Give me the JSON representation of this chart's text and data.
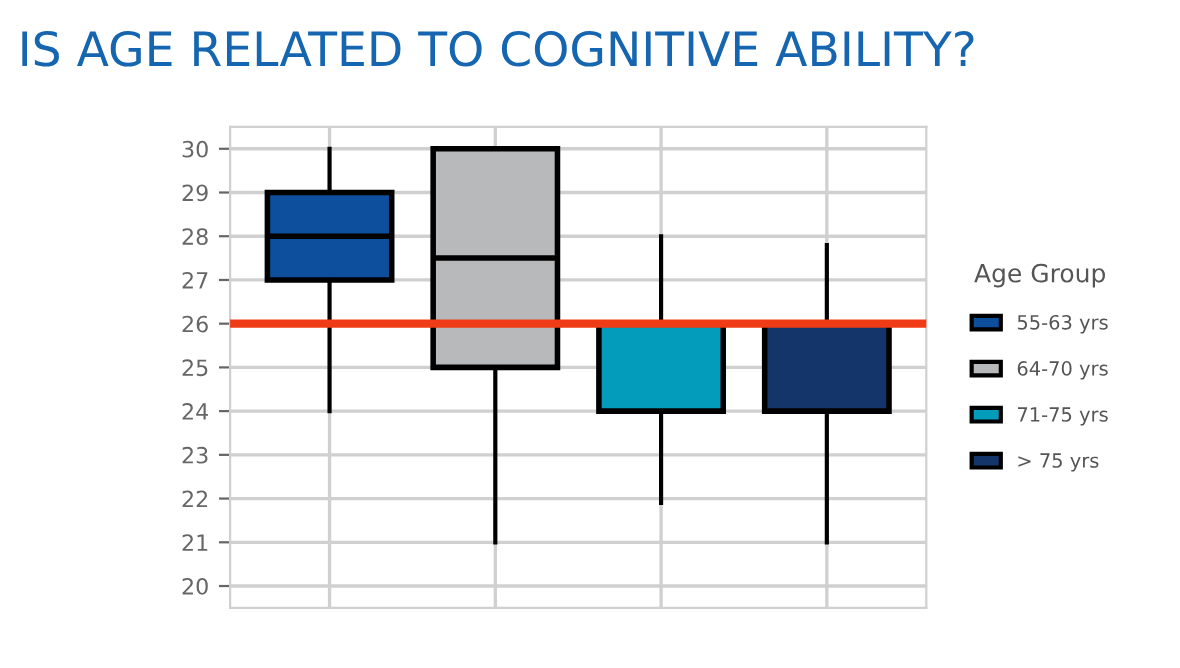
{
  "chart_data": {
    "type": "box",
    "title": "IS AGE RELATED TO COGNITIVE ABILITY?",
    "legend_title": "Age Group",
    "categories": [
      null,
      null,
      null,
      null
    ],
    "series": [
      {
        "name": "55-63 yrs",
        "color": "#0d4f9c",
        "boxes": [
          {
            "low": 24,
            "q1": 27,
            "median": 28,
            "q3": 29,
            "high": 30
          },
          null,
          null,
          null
        ]
      },
      {
        "name": "64-70 yrs",
        "color": "#b8b9bb",
        "boxes": [
          null,
          {
            "low": 21,
            "q1": 25,
            "median": 27.5,
            "q3": 30,
            "high": 30
          },
          null,
          null
        ]
      },
      {
        "name": "71-75 yrs",
        "color": "#039cba",
        "boxes": [
          null,
          null,
          {
            "low": 21.9,
            "q1": 24,
            "median": 26,
            "q3": 26,
            "high": 28
          },
          null
        ]
      },
      {
        "name": "> 75 yrs",
        "color": "#13356a",
        "boxes": [
          null,
          null,
          null,
          {
            "low": 21,
            "q1": 24,
            "median": 26,
            "q3": 26,
            "high": 27.8
          }
        ]
      }
    ],
    "ylim": [
      19.5,
      30.5
    ],
    "yticks": [
      20,
      21,
      22,
      23,
      24,
      25,
      26,
      27,
      28,
      29,
      30
    ],
    "ref_lines": [
      {
        "axis": "y",
        "value": 26,
        "color": "#f03c16"
      }
    ],
    "grid": true,
    "legend": "right"
  }
}
